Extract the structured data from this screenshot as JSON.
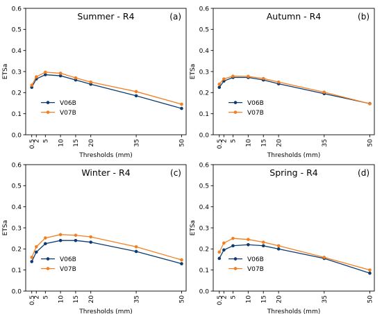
{
  "colors": {
    "series_0": "#0b3b6f",
    "series_1": "#f47f20",
    "axis": "#000000"
  },
  "chart_data": [
    {
      "type": "line",
      "title": "Summer - R4",
      "panel_label": "(a)",
      "xlabel": "Thresholds (mm)",
      "ylabel": "ETSa",
      "xlim": [
        -1.5,
        51.5
      ],
      "ylim": [
        0,
        0.6
      ],
      "x": [
        0.5,
        2,
        5,
        10,
        15,
        20,
        35,
        50
      ],
      "xticks": [
        0.5,
        2,
        5,
        10,
        15,
        20,
        35,
        50
      ],
      "xtick_labels": [
        "0.5",
        "2",
        "5",
        "10",
        "15",
        "20",
        "35",
        "50"
      ],
      "yticks": [
        0,
        0.1,
        0.2,
        0.3,
        0.4,
        0.5,
        0.6
      ],
      "ytick_labels": [
        "0.0",
        "0.1",
        "0.2",
        "0.3",
        "0.4",
        "0.5",
        "0.6"
      ],
      "legend_position": "lower-left",
      "grid": false,
      "series": [
        {
          "name": "V06B",
          "values": [
            0.225,
            0.265,
            0.285,
            0.28,
            0.26,
            0.24,
            0.185,
            0.125
          ]
        },
        {
          "name": "V07B",
          "values": [
            0.235,
            0.275,
            0.297,
            0.292,
            0.27,
            0.25,
            0.205,
            0.145
          ]
        }
      ]
    },
    {
      "type": "line",
      "title": "Autumn - R4",
      "panel_label": "(b)",
      "xlabel": "Thresholds (mm)",
      "ylabel": "ETSa",
      "xlim": [
        -1.5,
        51.5
      ],
      "ylim": [
        0,
        0.6
      ],
      "x": [
        0.5,
        2,
        5,
        10,
        15,
        20,
        35,
        50
      ],
      "xticks": [
        0.5,
        2,
        5,
        10,
        15,
        20,
        35,
        50
      ],
      "xtick_labels": [
        "0.5",
        "2",
        "5",
        "10",
        "15",
        "20",
        "35",
        "50"
      ],
      "yticks": [
        0,
        0.1,
        0.2,
        0.3,
        0.4,
        0.5,
        0.6
      ],
      "ytick_labels": [
        "0.0",
        "0.1",
        "0.2",
        "0.3",
        "0.4",
        "0.5",
        "0.6"
      ],
      "legend_position": "lower-left",
      "grid": false,
      "series": [
        {
          "name": "V06B",
          "values": [
            0.225,
            0.255,
            0.272,
            0.272,
            0.26,
            0.242,
            0.195,
            0.148
          ]
        },
        {
          "name": "V07B",
          "values": [
            0.24,
            0.265,
            0.278,
            0.277,
            0.267,
            0.25,
            0.202,
            0.147
          ]
        }
      ]
    },
    {
      "type": "line",
      "title": "Winter - R4",
      "panel_label": "(c)",
      "xlabel": "Thresholds (mm)",
      "ylabel": "ETSa",
      "xlim": [
        -1.5,
        51.5
      ],
      "ylim": [
        0,
        0.6
      ],
      "x": [
        0.5,
        2,
        5,
        10,
        15,
        20,
        35,
        50
      ],
      "xticks": [
        0.5,
        2,
        5,
        10,
        15,
        20,
        35,
        50
      ],
      "xtick_labels": [
        "0.5",
        "2",
        "5",
        "10",
        "15",
        "20",
        "35",
        "50"
      ],
      "yticks": [
        0,
        0.1,
        0.2,
        0.3,
        0.4,
        0.5,
        0.6
      ],
      "ytick_labels": [
        "0.0",
        "0.1",
        "0.2",
        "0.3",
        "0.4",
        "0.5",
        "0.6"
      ],
      "legend_position": "lower-left",
      "grid": false,
      "series": [
        {
          "name": "V06B",
          "values": [
            0.14,
            0.185,
            0.225,
            0.24,
            0.24,
            0.232,
            0.188,
            0.13
          ]
        },
        {
          "name": "V07B",
          "values": [
            0.16,
            0.21,
            0.252,
            0.268,
            0.265,
            0.257,
            0.21,
            0.148
          ]
        }
      ]
    },
    {
      "type": "line",
      "title": "Spring - R4",
      "panel_label": "(d)",
      "xlabel": "Thresholds (mm)",
      "ylabel": "ETSa",
      "xlim": [
        -1.5,
        51.5
      ],
      "ylim": [
        0,
        0.6
      ],
      "x": [
        0.5,
        2,
        5,
        10,
        15,
        20,
        35,
        50
      ],
      "xticks": [
        0.5,
        2,
        5,
        10,
        15,
        20,
        35,
        50
      ],
      "xtick_labels": [
        "0.5",
        "2",
        "5",
        "10",
        "15",
        "20",
        "35",
        "50"
      ],
      "yticks": [
        0,
        0.1,
        0.2,
        0.3,
        0.4,
        0.5,
        0.6
      ],
      "ytick_labels": [
        "0.0",
        "0.1",
        "0.2",
        "0.3",
        "0.4",
        "0.5",
        "0.6"
      ],
      "legend_position": "lower-left",
      "grid": false,
      "series": [
        {
          "name": "V06B",
          "values": [
            0.155,
            0.195,
            0.215,
            0.22,
            0.215,
            0.2,
            0.155,
            0.085
          ]
        },
        {
          "name": "V07B",
          "values": [
            0.185,
            0.228,
            0.25,
            0.245,
            0.232,
            0.215,
            0.16,
            0.1
          ]
        }
      ]
    }
  ]
}
